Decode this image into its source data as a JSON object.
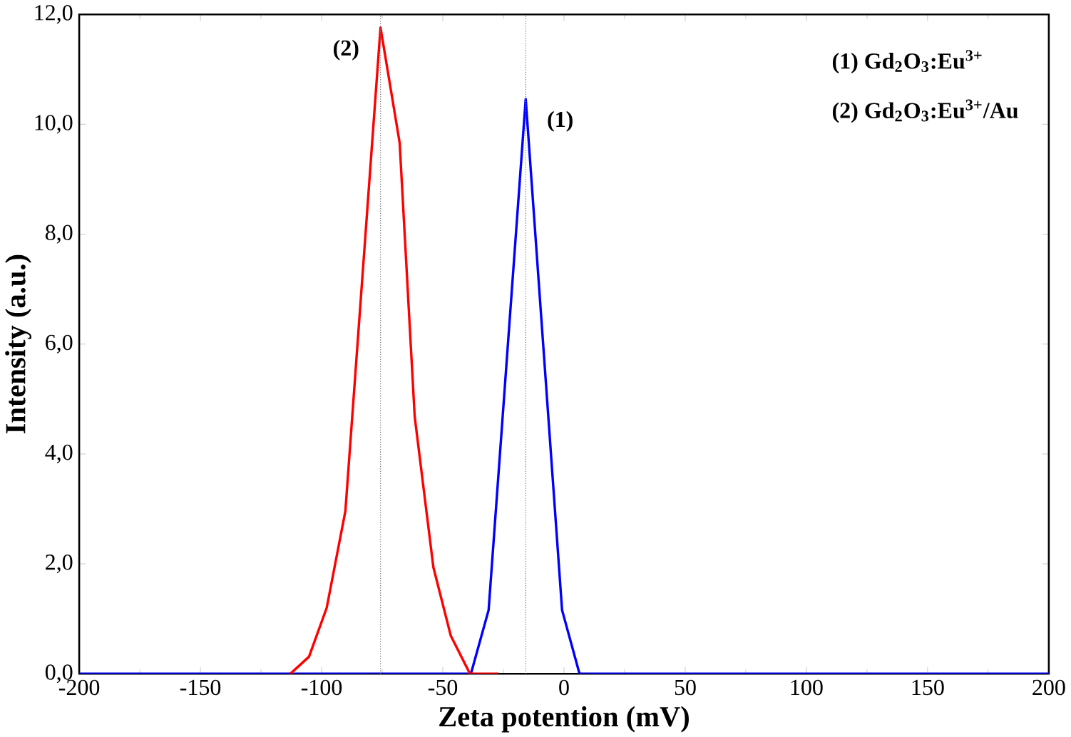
{
  "chart_data": {
    "type": "line",
    "xlabel": "Zeta potention (mV)",
    "ylabel": "Intensity (a.u.)",
    "series": [
      {
        "color": "#0000ff",
        "x": [
          -200,
          -44,
          -38.4,
          -31.1,
          -15.8,
          -0.8,
          6.4,
          13,
          200
        ],
        "values": [
          0,
          0,
          0,
          1.16,
          10.46,
          1.16,
          0,
          0,
          0
        ]
      },
      {
        "color": "#ff0000",
        "x": [
          -112.9,
          -105.2,
          -97.9,
          -90.2,
          -75.7,
          -67.8,
          -61.6,
          -53.9,
          -46.7,
          -38.8,
          -27
        ],
        "values": [
          0,
          0.31,
          1.2,
          2.96,
          11.76,
          9.66,
          4.68,
          1.94,
          0.69,
          0,
          0
        ]
      }
    ],
    "xlim": [
      -200,
      200
    ],
    "xticks": [
      -200,
      -150,
      -100,
      -50,
      0,
      50,
      100,
      150,
      200
    ],
    "ylim": [
      0,
      12
    ],
    "yticks": [
      {
        "value": 0,
        "label": "0,0"
      },
      {
        "value": 2,
        "label": "2,0"
      },
      {
        "value": 4,
        "label": "4,0"
      },
      {
        "value": 6,
        "label": "6,0"
      },
      {
        "value": 8,
        "label": "8,0"
      },
      {
        "value": 10,
        "label": "10,0"
      },
      {
        "value": 12,
        "label": "12,0"
      }
    ],
    "ref_lines": [
      {
        "axis": "x",
        "value": -75.7,
        "color": "#808080",
        "line_style": "dotted"
      },
      {
        "axis": "x",
        "value": -15.8,
        "color": "#808080",
        "line_style": "dotted"
      }
    ],
    "annotations": [
      {
        "text": "(2)",
        "x": -75.7,
        "y": 11.76
      },
      {
        "text": "(1)",
        "x": -15.8,
        "y": 10.46
      },
      "(1) Gd$_{2}$O$_{3}$:Eu$^{3+}$",
      "(2) Gd$_{2}$O$_{3}$:Eu$^{3+}$/Au"
    ],
    "grid": false,
    "marker": "none",
    "line_style": "solid"
  }
}
